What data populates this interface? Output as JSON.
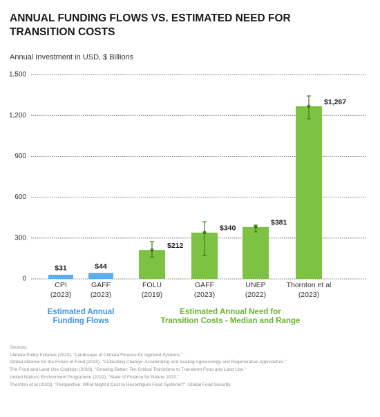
{
  "chart_data": {
    "type": "bar",
    "title": [
      "ANNUAL FUNDING FLOWS VS. ESTIMATED NEED FOR",
      "TRANSITION COSTS"
    ],
    "y_axis_label": "Annual Investment in USD, $ Billions",
    "categories": [
      [
        "CPI",
        "(2023)"
      ],
      [
        "GAFF",
        "(2023)"
      ],
      [
        "FOLU",
        "(2019)"
      ],
      [
        "GAFF",
        "(2023)"
      ],
      [
        "UNEP",
        "(2022)"
      ],
      [
        "Thornton et al",
        "(2023)"
      ]
    ],
    "series": [
      {
        "name": [
          "Estimated Annual",
          "Funding Flows"
        ],
        "color": "#5aaef2",
        "values": [
          31,
          44,
          null,
          null,
          null,
          null
        ],
        "value_labels": [
          "$31",
          "$44",
          null,
          null,
          null,
          null
        ]
      },
      {
        "name": [
          "Estimated Annual Need for",
          "Transition Costs - Median and Range"
        ],
        "color": "#7dc242",
        "values": [
          null,
          null,
          212,
          340,
          381,
          1267
        ],
        "value_labels": [
          null,
          null,
          "$212",
          "$340",
          "$381",
          "$1,267"
        ],
        "low": [
          null,
          null,
          162,
          172,
          345,
          1176
        ],
        "high": [
          null,
          null,
          274,
          420,
          395,
          1343
        ],
        "error_color": "#3f7a22"
      }
    ],
    "group_label_colors": [
      "#3b96e6",
      "#6ab42f"
    ],
    "ylim": [
      0,
      1500
    ],
    "yticks": [
      0,
      300,
      600,
      900,
      {
        "value": 1200,
        "label": "1,200"
      },
      {
        "value": 1500,
        "label": "1,500"
      }
    ],
    "grid": true,
    "sources_heading": "Sources:",
    "sources": [
      "Climate Policy Initiative (2023). \"Landscape of Climate Finance for Agrifood Systems.\"",
      "Global Alliance for the Future of Food (2023). \"Cultivating Change: Accelerating and Scaling Agroecology and Regenerative Approaches.\"",
      "The Food and Land Use Coalition (2019). \"Growing Better: Ten Critical Transitions to Transform Food and Land Use.\"",
      "United Nations Environment Programme (2022). \"State of Finance for Nature 2022.\"",
      "Thornton et al (2023). \"Perspective: What Might it Cost to Reconfigure Food Systems?\". Global Food Security."
    ]
  }
}
